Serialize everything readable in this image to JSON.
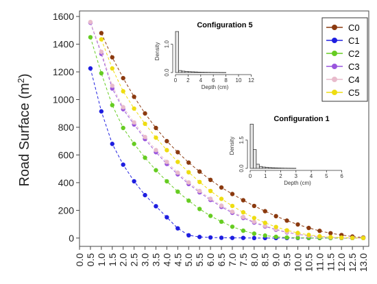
{
  "chart_data": {
    "type": "line",
    "ylabel": "Road Surface (m²)",
    "ylabel_main": "Road Surface (m",
    "ylabel_sup": "2",
    "ylabel_close": ")",
    "xlabel": "",
    "xlim": [
      0,
      13.25
    ],
    "ylim": [
      -60,
      1640
    ],
    "y_ticks": [
      0,
      200,
      400,
      600,
      800,
      1000,
      1200,
      1400,
      1600
    ],
    "y_tick_labels": [
      "0",
      "200",
      "400",
      "600",
      "800",
      "1000",
      "1200",
      "1400",
      "1600"
    ],
    "x_ticks": [
      0.0,
      0.5,
      1.0,
      1.5,
      2.0,
      2.5,
      3.0,
      3.5,
      4.0,
      4.5,
      5.0,
      5.5,
      6.0,
      6.5,
      7.0,
      7.5,
      8.0,
      8.5,
      9.0,
      9.5,
      10.0,
      10.5,
      11.0,
      11.5,
      12.0,
      12.5,
      13.0
    ],
    "x_tick_labels": [
      "0.0",
      "0.5",
      "1.0",
      "1.5",
      "2.0",
      "2.5",
      "3.0",
      "3.5",
      "4.0",
      "4.5",
      "5.0",
      "5.5",
      "6.0",
      "6.5",
      "7.0",
      "7.5",
      "8.0",
      "8.5",
      "9.0",
      "9.5",
      "10.0",
      "10.5",
      "11.0",
      "11.5",
      "12.0",
      "12.5",
      "13.0"
    ],
    "legend_position": "top-right",
    "series": [
      {
        "name": "C0",
        "color": "#8B3A0F",
        "x": [
          1.0,
          1.5,
          2.0,
          2.5,
          3.0,
          3.5,
          4.0,
          4.5,
          5.0,
          5.5,
          6.0,
          6.5,
          7.0,
          7.5,
          8.0,
          8.5,
          9.0,
          9.5,
          10.0,
          10.5,
          11.0,
          11.5,
          12.0,
          12.5,
          13.0
        ],
        "y": [
          1480,
          1305,
          1155,
          1020,
          900,
          795,
          700,
          620,
          545,
          480,
          420,
          365,
          318,
          273,
          232,
          194,
          158,
          126,
          98,
          73,
          52,
          35,
          22,
          11,
          4
        ]
      },
      {
        "name": "C1",
        "color": "#1E1EE0",
        "x": [
          0.5,
          1.0,
          1.5,
          2.0,
          2.5,
          3.0,
          3.5,
          4.0,
          4.5,
          5.0,
          5.5,
          6.0,
          6.5,
          7.0,
          7.5,
          8.0,
          8.5,
          9.0,
          9.5,
          10.0,
          10.5,
          11.0,
          11.5,
          12.0,
          12.5,
          13.0
        ],
        "y": [
          1225,
          915,
          680,
          530,
          410,
          310,
          230,
          150,
          70,
          20,
          8,
          4,
          2,
          1,
          1,
          0,
          0,
          0,
          0,
          0,
          0,
          0,
          0,
          0,
          0,
          0
        ]
      },
      {
        "name": "C2",
        "color": "#66CC22",
        "x": [
          0.5,
          1.0,
          1.5,
          2.0,
          2.5,
          3.0,
          3.5,
          4.0,
          4.5,
          5.0,
          5.5,
          6.0,
          6.5,
          7.0,
          7.5,
          8.0,
          8.5,
          9.0,
          9.5,
          10.0,
          10.5,
          11.0,
          11.5,
          12.0,
          12.5,
          13.0
        ],
        "y": [
          1450,
          1190,
          960,
          795,
          680,
          580,
          490,
          410,
          335,
          270,
          210,
          160,
          118,
          82,
          53,
          32,
          18,
          9,
          4,
          2,
          1,
          0,
          0,
          0,
          0,
          0
        ]
      },
      {
        "name": "C3",
        "color": "#9955DD",
        "x": [
          0.5,
          1.0,
          1.5,
          2.0,
          2.5,
          3.0,
          3.5,
          4.0,
          4.5,
          5.0,
          5.5,
          6.0,
          6.5,
          7.0,
          7.5,
          8.0,
          8.5,
          9.0,
          9.5,
          10.0,
          10.5,
          11.0,
          11.5,
          12.0,
          12.5,
          13.0
        ],
        "y": [
          1555,
          1330,
          1080,
          930,
          820,
          715,
          620,
          535,
          460,
          390,
          330,
          275,
          225,
          182,
          145,
          112,
          84,
          60,
          41,
          27,
          16,
          9,
          5,
          2,
          1,
          0
        ]
      },
      {
        "name": "C4",
        "color": "#E8BBCC",
        "x": [
          0.5,
          1.0,
          1.5,
          2.0,
          2.5,
          3.0,
          3.5,
          4.0,
          4.5,
          5.0,
          5.5,
          6.0,
          6.5,
          7.0,
          7.5,
          8.0,
          8.5,
          9.0,
          9.5,
          10.0,
          10.5,
          11.0,
          11.5,
          12.0,
          12.5,
          13.0
        ],
        "y": [
          1560,
          1345,
          1100,
          945,
          835,
          730,
          635,
          550,
          472,
          402,
          340,
          284,
          234,
          190,
          152,
          118,
          89,
          64,
          44,
          29,
          18,
          10,
          5,
          2,
          1,
          0
        ]
      },
      {
        "name": "C5",
        "color": "#EEDD11",
        "x": [
          1.0,
          1.5,
          2.0,
          2.5,
          3.0,
          3.5,
          4.0,
          4.5,
          5.0,
          5.5,
          6.0,
          6.5,
          7.0,
          7.5,
          8.0,
          8.5,
          9.0,
          9.5,
          10.0,
          10.5,
          11.0,
          11.5,
          12.0,
          12.5,
          13.0
        ],
        "y": [
          1435,
          1225,
          1060,
          935,
          825,
          725,
          635,
          550,
          475,
          405,
          340,
          283,
          232,
          186,
          145,
          110,
          80,
          56,
          37,
          23,
          13,
          7,
          3,
          1,
          0
        ]
      }
    ],
    "insets": [
      {
        "title": "Configuration 5",
        "xlabel": "Depth (cm)",
        "ylabel": "Density",
        "xlim": [
          0,
          12.5
        ],
        "ylim": [
          0,
          1.5
        ],
        "x_ticks": [
          0,
          2,
          4,
          6,
          8,
          10,
          12
        ],
        "x_tick_labels": [
          "0",
          "2",
          "4",
          "6",
          "8",
          "10",
          "12"
        ],
        "y_ticks": [
          0.0,
          1.0
        ],
        "y_tick_labels": [
          "0.0",
          "1.0"
        ],
        "bin_width": 0.5,
        "bin_starts": [
          0,
          0.5,
          1.0,
          1.5,
          2.0,
          2.5,
          3.0,
          3.5,
          4.0,
          4.5,
          5.0,
          5.5,
          6.0,
          6.5,
          7.0,
          7.5
        ],
        "densities": [
          1.45,
          0.07,
          0.05,
          0.04,
          0.03,
          0.025,
          0.02,
          0.015,
          0.012,
          0.01,
          0.008,
          0.006,
          0.005,
          0.004,
          0.003,
          0.002
        ]
      },
      {
        "title": "Configuration 1",
        "xlabel": "Depth (cm)",
        "ylabel": "Density",
        "xlim": [
          0,
          6.2
        ],
        "ylim": [
          0,
          2.4
        ],
        "x_ticks": [
          0,
          1,
          2,
          3,
          4,
          5,
          6
        ],
        "x_tick_labels": [
          "0",
          "1",
          "2",
          "3",
          "4",
          "5",
          "6"
        ],
        "y_ticks": [
          0.0,
          1.5
        ],
        "y_tick_labels": [
          "0.0",
          "1.5"
        ],
        "bin_width": 0.2,
        "bin_starts": [
          0,
          0.2,
          0.4,
          0.6,
          0.8,
          1.0,
          1.2,
          1.4,
          1.6,
          1.8,
          2.0,
          2.2,
          2.4,
          2.6,
          2.8
        ],
        "densities": [
          2.35,
          1.0,
          0.22,
          0.1,
          0.07,
          0.05,
          0.04,
          0.03,
          0.025,
          0.02,
          0.015,
          0.01,
          0.008,
          0.006,
          0.005
        ]
      }
    ]
  }
}
